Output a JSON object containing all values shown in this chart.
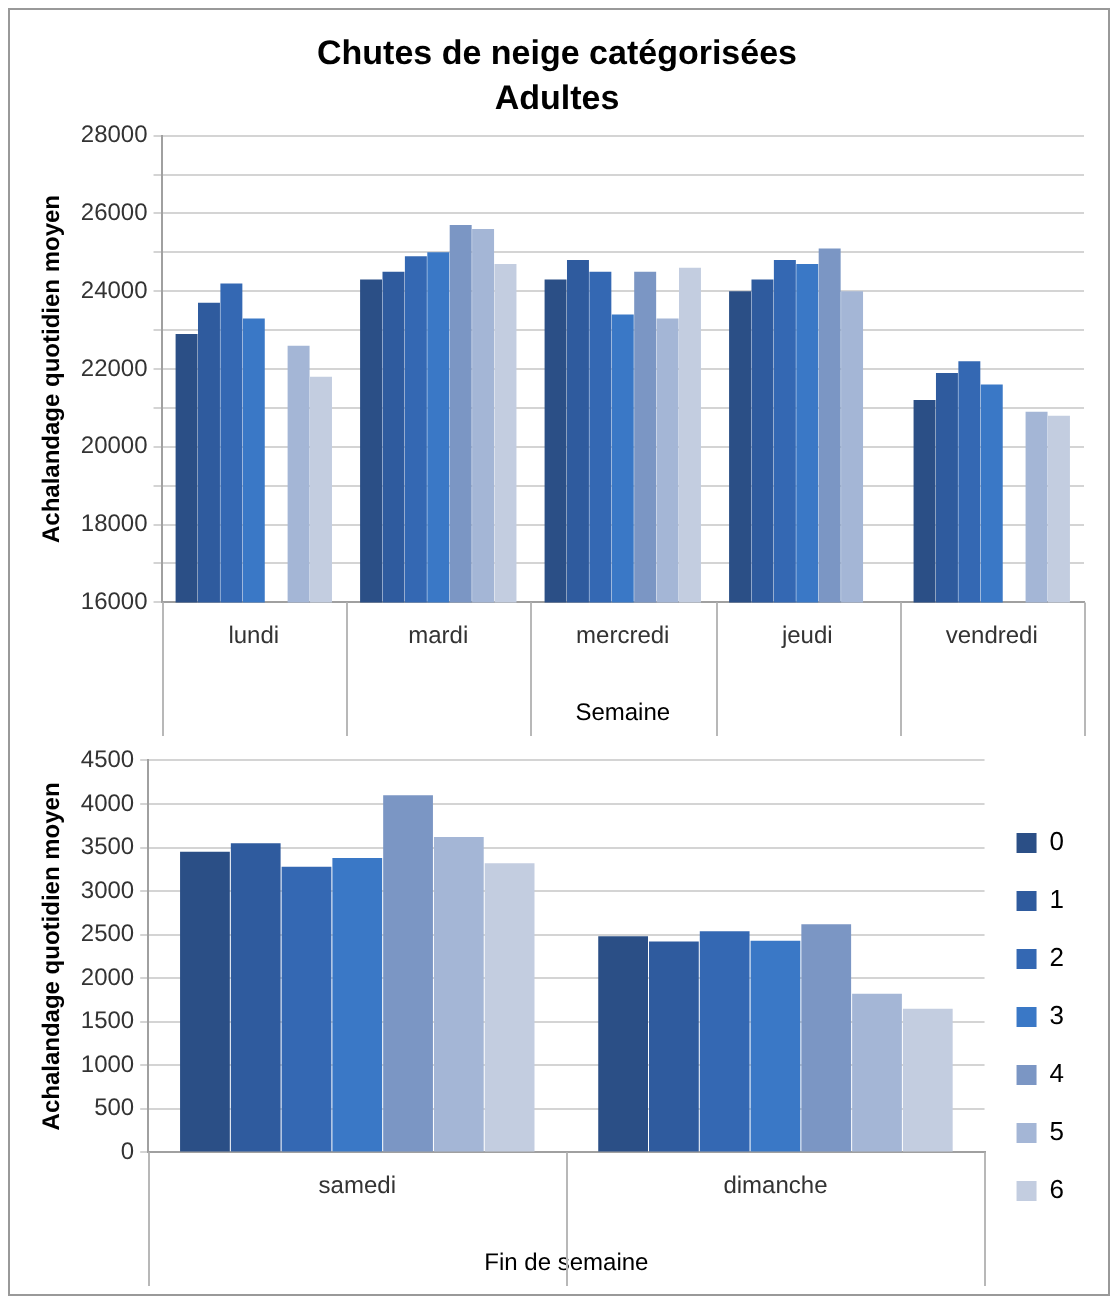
{
  "chart_data": [
    {
      "type": "bar",
      "title": "Chutes de neige catégorisées",
      "subtitle": "Adultes",
      "xlabel": "Semaine",
      "ylabel": "Achalandage quotidien moyen",
      "categories": [
        "lundi",
        "mardi",
        "mercredi",
        "jeudi",
        "vendredi"
      ],
      "series": [
        {
          "color": "#2b4f86",
          "values": [
            22900,
            24300,
            24300,
            24000,
            21200
          ]
        },
        {
          "color": "#2f5b9e",
          "values": [
            23700,
            24500,
            24800,
            24300,
            21900
          ]
        },
        {
          "color": "#3468b3",
          "values": [
            24200,
            24900,
            24500,
            24800,
            22200
          ]
        },
        {
          "color": "#3a78c6",
          "values": [
            23300,
            25000,
            23400,
            24700,
            21600
          ]
        },
        {
          "color": "#7b96c4",
          "values": [
            null,
            25700,
            24500,
            25100,
            null
          ]
        },
        {
          "color": "#a4b6d6",
          "values": [
            22600,
            25600,
            23300,
            24000,
            20900
          ]
        },
        {
          "color": "#c3cde0",
          "values": [
            21800,
            24700,
            24600,
            null,
            20800
          ]
        }
      ],
      "ylim": [
        16000,
        28000
      ],
      "yticks": [
        16000,
        {
          "value": 17000,
          "label": null
        },
        18000,
        {
          "value": 19000,
          "label": null
        },
        20000,
        {
          "value": 21000,
          "label": null
        },
        22000,
        {
          "value": 23000,
          "label": null
        },
        24000,
        {
          "value": 25000,
          "label": null
        },
        26000,
        {
          "value": 27000,
          "label": null
        },
        28000
      ],
      "grid": "y",
      "legend": false
    },
    {
      "type": "bar",
      "xlabel": "Fin de semaine",
      "ylabel": "Achalandage quotidien moyen",
      "categories": [
        "samedi",
        "dimanche"
      ],
      "series": [
        {
          "name": "0",
          "color": "#2b4f86",
          "values": [
            3450,
            2480
          ]
        },
        {
          "name": "1",
          "color": "#2f5b9e",
          "values": [
            3550,
            2420
          ]
        },
        {
          "name": "2",
          "color": "#3468b3",
          "values": [
            3280,
            2540
          ]
        },
        {
          "name": "3",
          "color": "#3a78c6",
          "values": [
            3380,
            2430
          ]
        },
        {
          "name": "4",
          "color": "#7b96c4",
          "values": [
            4100,
            2620
          ]
        },
        {
          "name": "5",
          "color": "#a4b6d6",
          "values": [
            3620,
            1820
          ]
        },
        {
          "name": "6",
          "color": "#c3cde0",
          "values": [
            3320,
            1650
          ]
        }
      ],
      "ylim": [
        0,
        4500
      ],
      "yticks": [
        0,
        500,
        1000,
        1500,
        2000,
        2500,
        3000,
        3500,
        4000,
        4500
      ],
      "grid": "y",
      "legend": "right"
    }
  ]
}
